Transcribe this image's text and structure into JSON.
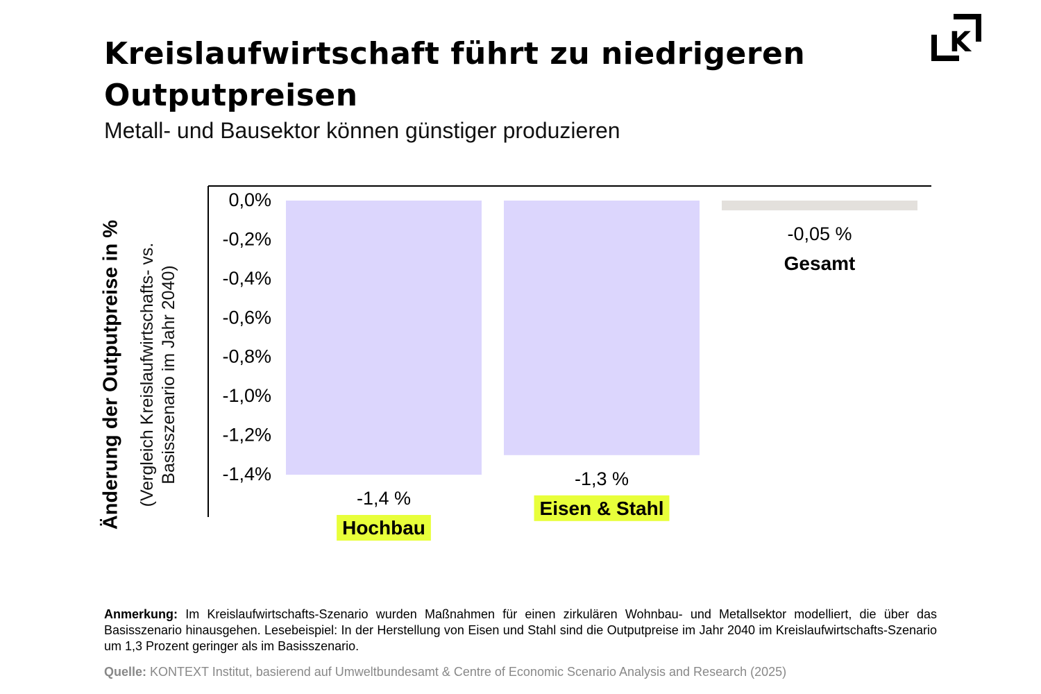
{
  "header": {
    "title": "Kreislaufwirtschaft führt zu niedrigeren Outputpreisen",
    "subtitle": "Metall- und Bausektor können günstiger produzieren",
    "logo_text": "K"
  },
  "chart_data": {
    "type": "bar",
    "title": "Kreislaufwirtschaft führt zu niedrigeren Outputpreisen",
    "subtitle": "Metall- und Bausektor können günstiger produzieren",
    "ylabel": "Änderung der Outputpreise in %",
    "ylabel_sub_line1": "(Vergleich Kreislaufwirtschafts- vs.",
    "ylabel_sub_line2": "Basisszenario im Jahr 2040)",
    "ylim": [
      -1.4,
      0
    ],
    "yticks": [
      0,
      -0.2,
      -0.4,
      -0.6,
      -0.8,
      -1.0,
      -1.2,
      -1.4
    ],
    "ytick_labels": [
      "0,0%",
      "-0,2%",
      "-0,4%",
      "-0,6%",
      "-0,8%",
      "-1,0%",
      "-1,2%",
      "-1,4%"
    ],
    "grid": false,
    "categories": [
      "Hochbau",
      "Eisen & Stahl",
      "Gesamt"
    ],
    "values": [
      -1.4,
      -1.3,
      -0.05
    ],
    "data_labels": [
      "-1,4 %",
      "-1,3 %",
      "-0,05 %"
    ],
    "bar_colors": [
      "#dcd6fd",
      "#dcd6fd",
      "#e3e0dc"
    ],
    "category_highlight": [
      true,
      true,
      false
    ],
    "highlight_color": "#e8ff3a"
  },
  "footer": {
    "note_label": "Anmerkung:",
    "note_text": " Im Kreislaufwirtschafts-Szenario wurden Maßnahmen für einen zirkulären Wohnbau- und Metallsektor modelliert, die über das Basisszenario hinausgehen. Lesebeispiel: In der Herstellung von Eisen und Stahl sind die Outputpreise im Jahr 2040 im Kreislaufwirtschafts-Szenario um 1,3 Prozent geringer als im Basisszenario.",
    "source_label": "Quelle:",
    "source_text": " KONTEXT Institut, basierend auf Umweltbundesamt & Centre of Economic Scenario Analysis and Research (2025)"
  }
}
